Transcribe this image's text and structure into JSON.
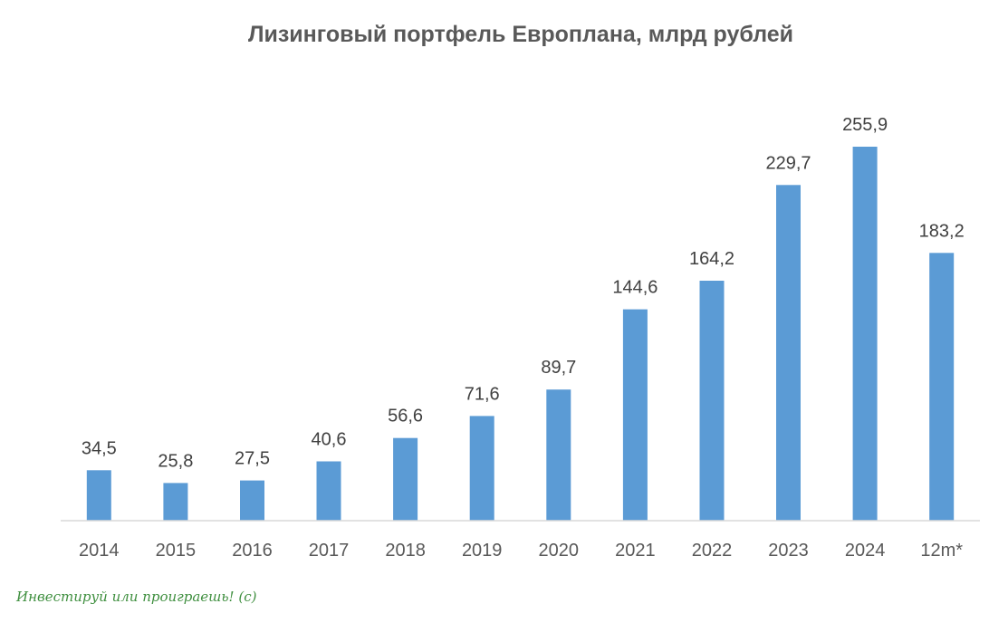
{
  "chart_data": {
    "type": "bar",
    "title": "Лизинговый портфель Европлана, млрд рублей",
    "categories": [
      "2014",
      "2015",
      "2016",
      "2017",
      "2018",
      "2019",
      "2020",
      "2021",
      "2022",
      "2023",
      "2024",
      "12m*"
    ],
    "series": [
      {
        "values": [
          34.5,
          25.8,
          27.5,
          40.6,
          56.6,
          71.6,
          89.7,
          144.6,
          164.2,
          229.7,
          255.9,
          183.2
        ]
      }
    ],
    "data_labels": [
      "34,5",
      "25,8",
      "27,5",
      "40,6",
      "56,6",
      "71,6",
      "89,7",
      "144,6",
      "164,2",
      "229,7",
      "255,9",
      "183,2"
    ],
    "ylim": [
      0,
      255.9
    ],
    "grid": false,
    "legend": "none",
    "bar_color": "#5b9bd5",
    "axis_color": "#d9d9d9"
  },
  "watermark": "Инвестируй или проиграешь! (с)"
}
